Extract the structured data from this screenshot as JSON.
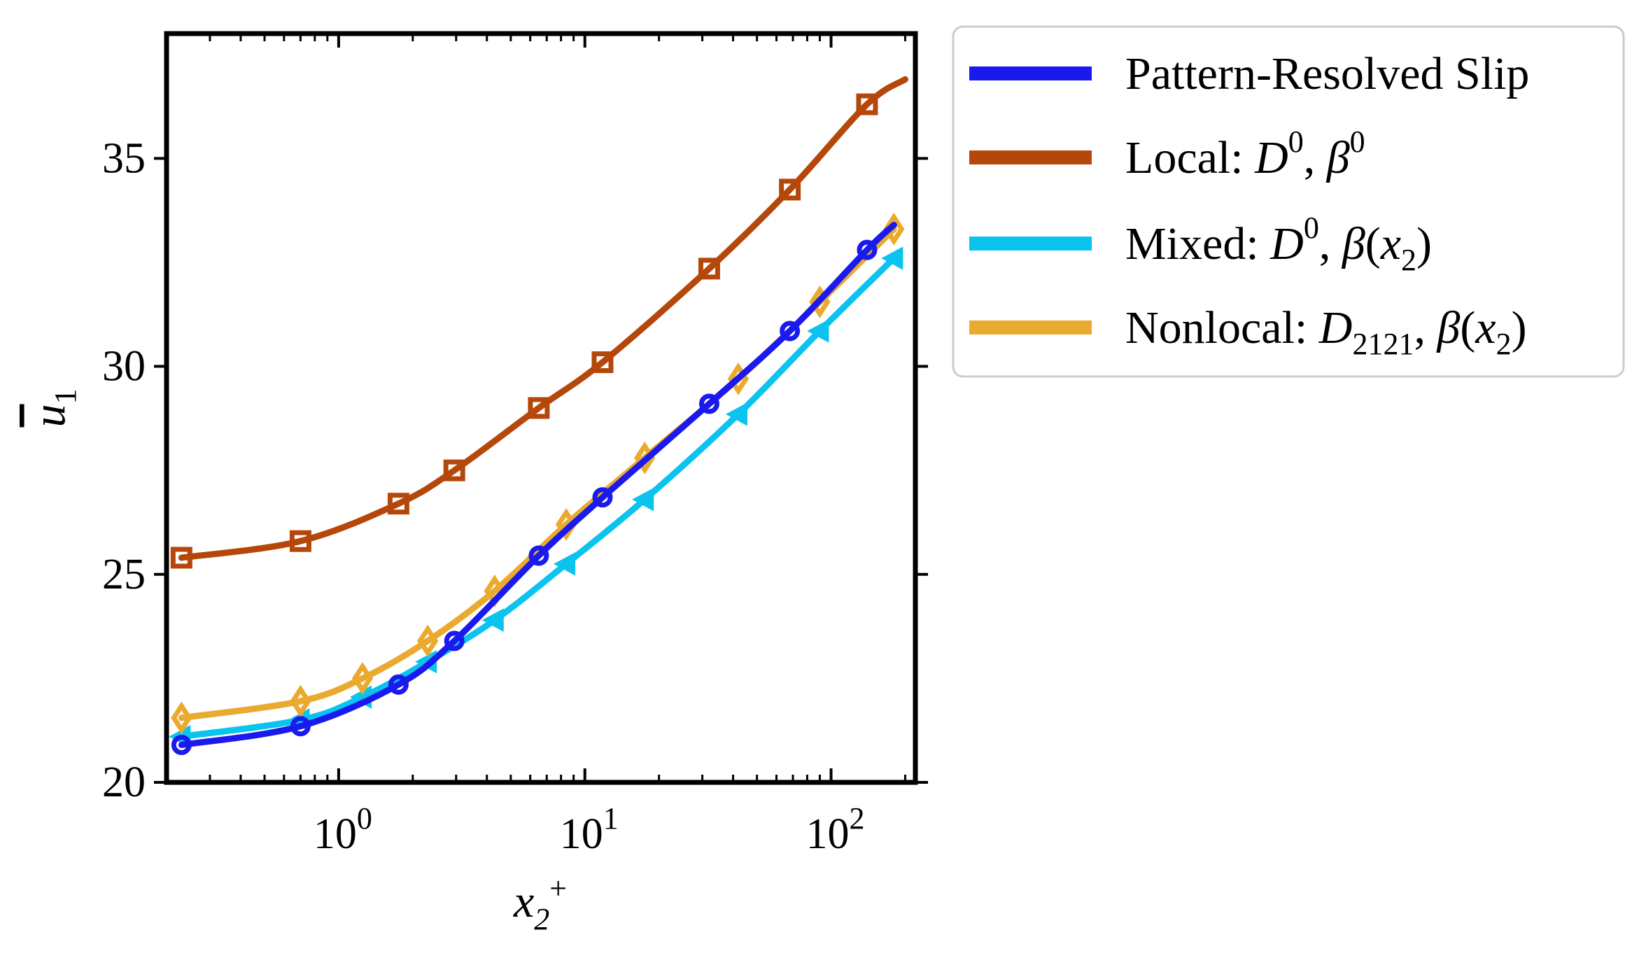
{
  "chart_data": {
    "type": "line",
    "xscale": "log",
    "xlim": [
      0.2,
      220
    ],
    "ylim": [
      20,
      38
    ],
    "xlabel": "x₂⁺",
    "ylabel": "u̅₁",
    "yticks": [
      "20",
      "25",
      "30",
      "35"
    ],
    "xticks": [
      {
        "base": "10",
        "exp": "0"
      },
      {
        "base": "10",
        "exp": "1"
      },
      {
        "base": "10",
        "exp": "2"
      }
    ],
    "grid": false,
    "legend_position": "outside-top-right",
    "series": [
      {
        "name": "Pattern-Resolved Slip",
        "color": "#1a1aee",
        "marker": "circle",
        "x": [
          0.23,
          0.7,
          1.75,
          2.95,
          6.5,
          11.8,
          32,
          68,
          140,
          180
        ],
        "y": [
          20.9,
          21.35,
          22.35,
          23.4,
          25.45,
          26.85,
          29.1,
          30.85,
          32.8,
          33.4
        ]
      },
      {
        "name": "Local: D⁰, β⁰",
        "color": "#b5470a",
        "marker": "square",
        "x": [
          0.23,
          0.7,
          1.75,
          2.95,
          6.5,
          11.8,
          32,
          68,
          140,
          200
        ],
        "y": [
          25.4,
          25.8,
          26.7,
          27.5,
          29.0,
          30.1,
          32.35,
          34.25,
          36.3,
          36.9
        ]
      },
      {
        "name": "Mixed: D⁰, β(x₂)",
        "color": "#0ac3ef",
        "marker": "triangle-left",
        "x": [
          0.23,
          0.7,
          1.25,
          2.3,
          4.3,
          8.4,
          17.5,
          42,
          90,
          180
        ],
        "y": [
          21.1,
          21.5,
          22.05,
          22.9,
          23.9,
          25.25,
          26.8,
          28.85,
          30.85,
          32.6
        ]
      },
      {
        "name": "Nonlocal: D₂₁₂₁, β(x₂)",
        "color": "#eaaa2f",
        "marker": "diamond",
        "x": [
          0.23,
          0.7,
          1.25,
          2.3,
          4.3,
          8.4,
          17.5,
          42,
          90,
          180
        ],
        "y": [
          21.55,
          21.95,
          22.5,
          23.4,
          24.6,
          26.2,
          27.8,
          29.7,
          31.55,
          33.3
        ]
      }
    ],
    "legend": {
      "entries": [
        {
          "text": "Pattern-Resolved Slip"
        },
        {
          "prefix": "Local: ",
          "math": [
            {
              "t": "D"
            },
            {
              "t": "0",
              "sup": true
            },
            {
              "t": ", "
            },
            {
              "t": "β"
            },
            {
              "t": "0",
              "sup": true
            }
          ]
        },
        {
          "prefix": "Mixed: ",
          "math": [
            {
              "t": "D"
            },
            {
              "t": "0",
              "sup": true
            },
            {
              "t": ", "
            },
            {
              "t": "β"
            },
            {
              "t": "(",
              "plain": true
            },
            {
              "t": "x"
            },
            {
              "t": "2",
              "sub": true
            },
            {
              "t": ")",
              "plain": true
            }
          ]
        },
        {
          "prefix": "Nonlocal: ",
          "math": [
            {
              "t": "D"
            },
            {
              "t": "2121",
              "sub": true
            },
            {
              "t": ", "
            },
            {
              "t": "β"
            },
            {
              "t": "(",
              "plain": true
            },
            {
              "t": "x"
            },
            {
              "t": "2",
              "sub": true
            },
            {
              "t": ")",
              "plain": true
            }
          ]
        }
      ]
    }
  }
}
